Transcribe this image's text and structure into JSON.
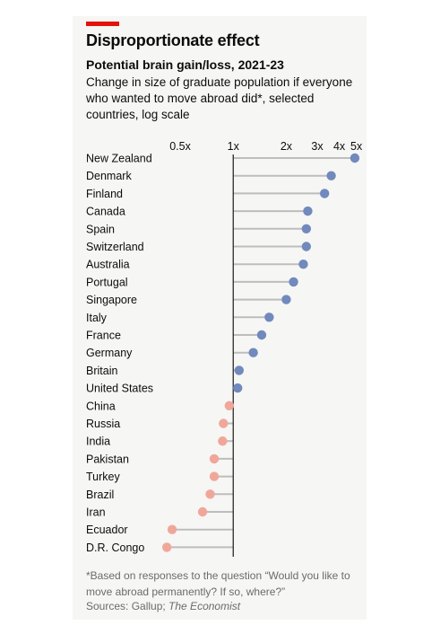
{
  "header": {
    "title": "Disproportionate effect",
    "subtitle": "Potential brain gain/loss, 2021-23",
    "description": "Change in size of graduate population if everyone who wanted to move abroad did*, selected countries, log scale"
  },
  "footer": {
    "footnote": "*Based on responses to the question “Would you like to move abroad permanently? If so, where?”",
    "source_prefix": "Sources: Gallup; ",
    "source_italic": "The Economist"
  },
  "colors": {
    "accent": "#e3120b",
    "gain": "#7189bd",
    "loss": "#f0a79a",
    "stem": "#bdbdbd",
    "baseline": "#1a1a1a"
  },
  "chart_data": {
    "type": "lollipop",
    "scale": "log",
    "baseline": 1,
    "xlim": [
      0.4,
      5.2
    ],
    "ticks": [
      {
        "value": 0.5,
        "label": "0.5x"
      },
      {
        "value": 1,
        "label": "1x"
      },
      {
        "value": 2,
        "label": "2x"
      },
      {
        "value": 3,
        "label": "3x"
      },
      {
        "value": 4,
        "label": "4x"
      },
      {
        "value": 5,
        "label": "5x"
      }
    ],
    "categories": [
      "New Zealand",
      "Denmark",
      "Finland",
      "Canada",
      "Spain",
      "Switzerland",
      "Australia",
      "Portugal",
      "Singapore",
      "Italy",
      "France",
      "Germany",
      "Britain",
      "United States",
      "China",
      "Russia",
      "India",
      "Pakistan",
      "Turkey",
      "Brazil",
      "Iran",
      "Ecuador",
      "D.R. Congo"
    ],
    "values": [
      4.9,
      3.6,
      3.3,
      2.65,
      2.6,
      2.6,
      2.5,
      2.2,
      2.0,
      1.6,
      1.45,
      1.3,
      1.08,
      1.06,
      0.95,
      0.88,
      0.87,
      0.78,
      0.78,
      0.74,
      0.67,
      0.45,
      0.42
    ]
  }
}
